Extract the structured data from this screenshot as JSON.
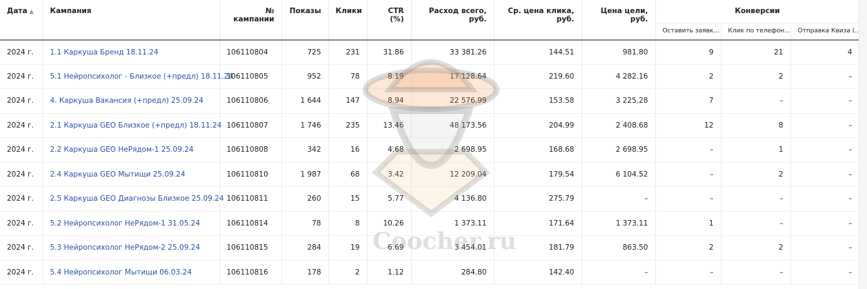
{
  "headers": {
    "date": "Дата",
    "sort_indicator": "▲",
    "campaign": "Кампания",
    "campaign_no": "№ кампании",
    "impressions": "Показы",
    "clicks": "Клики",
    "ctr": "CTR (%)",
    "spend": "Расход всего, руб.",
    "avg_cpc": "Ср. цена клика, руб.",
    "goal_cost": "Цена цели, руб.",
    "conversions": "Конверсии",
    "conv_1": "Оставить заявк...",
    "conv_2": "Клик по телефон...",
    "conv_3": "Отправка Квиза (..."
  },
  "rows": [
    {
      "date": "2024 г.",
      "campaign": "1.1 Каркуша Бренд 18.11.24",
      "id": "106110804",
      "impr": "725",
      "clicks": "231",
      "ctr": "31.86",
      "spend": "33 381.26",
      "cpc": "144.51",
      "goal": "981.80",
      "c1": "9",
      "c2": "21",
      "c3": "4"
    },
    {
      "date": "2024 г.",
      "campaign": "5.1 Нейропсихолог - Близкое (+предл) 18.11.24",
      "id": "106110805",
      "impr": "952",
      "clicks": "78",
      "ctr": "8.19",
      "spend": "17 128.64",
      "cpc": "219.60",
      "goal": "4 282.16",
      "c1": "2",
      "c2": "2",
      "c3": "–"
    },
    {
      "date": "2024 г.",
      "campaign": "4. Каркуша Вакансия (+предл) 25.09.24",
      "id": "106110806",
      "impr": "1 644",
      "clicks": "147",
      "ctr": "8.94",
      "spend": "22 576.99",
      "cpc": "153.58",
      "goal": "3 225.28",
      "c1": "7",
      "c2": "–",
      "c3": "–"
    },
    {
      "date": "2024 г.",
      "campaign": "2.1 Каркуша GEO Близкое (+предл) 18.11.24",
      "id": "106110807",
      "impr": "1 746",
      "clicks": "235",
      "ctr": "13.46",
      "spend": "48 173.56",
      "cpc": "204.99",
      "goal": "2 408.68",
      "c1": "12",
      "c2": "8",
      "c3": "–"
    },
    {
      "date": "2024 г.",
      "campaign": "2.2 Каркуша GEO НеРядом-1 25.09.24",
      "id": "106110808",
      "impr": "342",
      "clicks": "16",
      "ctr": "4.68",
      "spend": "2 698.95",
      "cpc": "168.68",
      "goal": "2 698.95",
      "c1": "–",
      "c2": "1",
      "c3": "–"
    },
    {
      "date": "2024 г.",
      "campaign": "2.4 Каркуша GEO Мытищи 25.09.24",
      "id": "106110810",
      "impr": "1 987",
      "clicks": "68",
      "ctr": "3.42",
      "spend": "12 209.04",
      "cpc": "179.54",
      "goal": "6 104.52",
      "c1": "–",
      "c2": "2",
      "c3": "–"
    },
    {
      "date": "2024 г.",
      "campaign": "2.5 Каркуша GEO Диагнозы Близкое 25.09.24",
      "id": "106110811",
      "impr": "260",
      "clicks": "15",
      "ctr": "5.77",
      "spend": "4 136.80",
      "cpc": "275.79",
      "goal": "–",
      "c1": "–",
      "c2": "–",
      "c3": "–"
    },
    {
      "date": "2024 г.",
      "campaign": "5.2 Нейропсихолог НеРядом-1 31.05.24",
      "id": "106110814",
      "impr": "78",
      "clicks": "8",
      "ctr": "10.26",
      "spend": "1 373.11",
      "cpc": "171.64",
      "goal": "1 373.11",
      "c1": "1",
      "c2": "–",
      "c3": "–"
    },
    {
      "date": "2024 г.",
      "campaign": "5.3 Нейропсихолог НеРядом-2 25.09.24",
      "id": "106110815",
      "impr": "284",
      "clicks": "19",
      "ctr": "6.69",
      "spend": "3 454.01",
      "cpc": "181.79",
      "goal": "863.50",
      "c1": "2",
      "c2": "2",
      "c3": "–"
    },
    {
      "date": "2024 г.",
      "campaign": "5.4 Нейропсихолог Мытищи 06.03.24",
      "id": "106110816",
      "impr": "178",
      "clicks": "2",
      "ctr": "1.12",
      "spend": "284.80",
      "cpc": "142.40",
      "goal": "–",
      "c1": "–",
      "c2": "–",
      "c3": "–"
    }
  ],
  "watermark": "Coocher.ru",
  "colors": {
    "link": "#2b4fa8",
    "header_rule": "#888888"
  }
}
